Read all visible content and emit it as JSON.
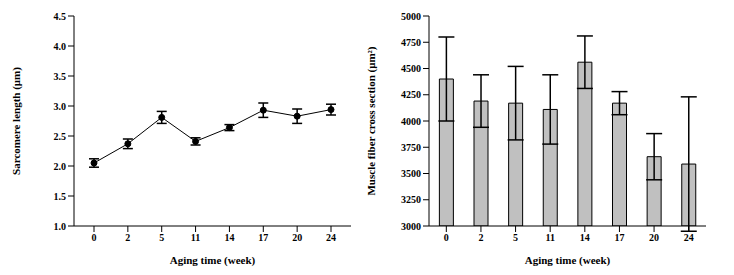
{
  "chart_data": [
    {
      "type": "line",
      "x_label": "Aging time (week)",
      "y_label": "Sarcomere length (μm)",
      "categories": [
        "0",
        "2",
        "5",
        "11",
        "14",
        "17",
        "20",
        "24"
      ],
      "values": [
        2.05,
        2.37,
        2.81,
        2.41,
        2.64,
        2.93,
        2.83,
        2.94
      ],
      "errors": [
        0.07,
        0.08,
        0.1,
        0.06,
        0.05,
        0.12,
        0.12,
        0.09
      ],
      "color": "#000000",
      "marker": "circle",
      "ylim": [
        1.0,
        4.5
      ],
      "yticks": [
        {
          "value": 1.0,
          "label": "1.0"
        },
        {
          "value": 1.5,
          "label": "1.5"
        },
        {
          "value": 2.0,
          "label": "2.0"
        },
        {
          "value": 2.5,
          "label": "2.5"
        },
        {
          "value": 3.0,
          "label": "3.0"
        },
        {
          "value": 3.5,
          "label": "3.5"
        },
        {
          "value": 4.0,
          "label": "4.0"
        },
        {
          "value": 4.5,
          "label": "4.5"
        }
      ],
      "grid": false
    },
    {
      "type": "bar",
      "x_label": "Aging time (week)",
      "y_label": "Muscle fiber cross section (μm²)",
      "categories": [
        "0",
        "2",
        "5",
        "11",
        "14",
        "17",
        "20",
        "24"
      ],
      "values": [
        4400,
        4190,
        4170,
        4110,
        4560,
        4170,
        3660,
        3590
      ],
      "errors": [
        400,
        250,
        350,
        330,
        250,
        110,
        220,
        640
      ],
      "color": "#c0c0c0",
      "ylim": [
        3000,
        5000
      ],
      "yticks": [
        3000,
        3250,
        3500,
        3750,
        4000,
        4250,
        4500,
        4750,
        5000
      ],
      "grid": false
    }
  ]
}
